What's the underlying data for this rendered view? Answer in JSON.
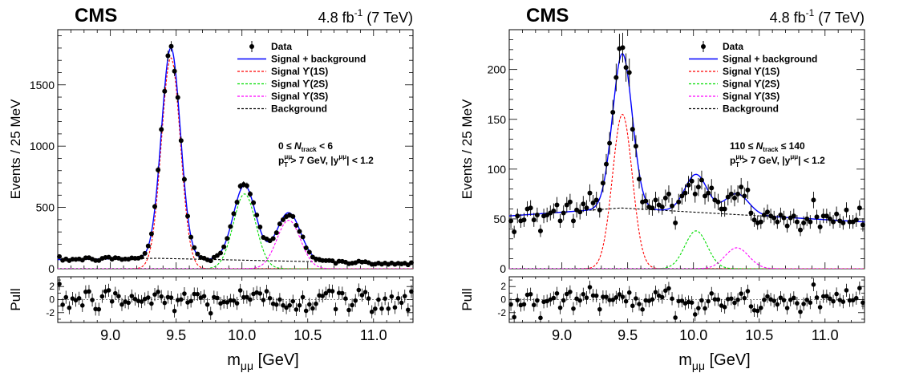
{
  "figures": [
    {
      "cms_label": "CMS",
      "lumi_value": "4.8 fb",
      "lumi_exp": "-1",
      "lumi_energy": "(7 TeV)",
      "cut_text_1_lo": "0 ≤",
      "cut_text_1_var": "N",
      "cut_text_1_sub": "track",
      "cut_text_1_hi": "< 6",
      "cut_text_2": "> 7 GeV, |y",
      "cut_text_2_end": "| < 1.2"
    },
    {
      "cms_label": "CMS",
      "lumi_value": "4.8 fb",
      "lumi_exp": "-1",
      "lumi_energy": "(7 TeV)",
      "cut_text_1_lo": "110 ≤",
      "cut_text_1_var": "N",
      "cut_text_1_sub": "track",
      "cut_text_1_hi": "≤ 140",
      "cut_text_2": "> 7 GeV, |y",
      "cut_text_2_end": "| < 1.2"
    }
  ],
  "legend": [
    {
      "label": "Data",
      "style": "marker",
      "color": "#000000"
    },
    {
      "label": "Signal + background",
      "style": "solid",
      "color": "#0000ff"
    },
    {
      "label": "Signal ϒ(1S)",
      "style": "dashed",
      "color": "#ff0000"
    },
    {
      "label": "Signal ϒ(2S)",
      "style": "dashed",
      "color": "#00dd00"
    },
    {
      "label": "Signal ϒ(3S)",
      "style": "dashed",
      "color": "#ff00ff"
    },
    {
      "label": "Background",
      "style": "dashed",
      "color": "#000000"
    }
  ],
  "axis_labels": {
    "y_main": "Events / 25 MeV",
    "y_pull": "Pull",
    "x_main": "m",
    "x_sub": "μμ",
    "x_unit": "[GeV]",
    "pt_label": "p",
    "pt_sub": "T",
    "pt_sup": "μμ",
    "y_sup": "μμ"
  },
  "chart_data": [
    {
      "type": "scatter",
      "title": "",
      "xlabel": "mμμ [GeV]",
      "ylabel": "Events / 25 MeV",
      "xlim": [
        8.6,
        11.3
      ],
      "ylim": [
        0,
        1950
      ],
      "xticks": [
        9.0,
        9.5,
        10.0,
        10.5,
        11.0
      ],
      "yticks": [
        0,
        500,
        1000,
        1500
      ],
      "pull_ylim": [
        -3.5,
        3.5
      ],
      "pull_yticks": [
        -2,
        0,
        2
      ],
      "bin_width": 0.025,
      "model": {
        "background": {
          "at_x_min": 75,
          "peak": 85,
          "peak_x": 9.35,
          "at_x_max": 40
        },
        "peaks": [
          {
            "name": "Signal ϒ(1S)",
            "mass": 9.46,
            "height": 1720,
            "sigma": 0.072
          },
          {
            "name": "Signal ϒ(2S)",
            "mass": 10.02,
            "height": 610,
            "sigma": 0.085
          },
          {
            "name": "Signal ϒ(3S)",
            "mass": 10.355,
            "height": 395,
            "sigma": 0.09
          }
        ]
      },
      "series": [
        {
          "name": "Data",
          "note": "points follow the signal+background model with statistical fluctuation"
        },
        {
          "name": "Signal + background"
        },
        {
          "name": "Signal ϒ(1S)"
        },
        {
          "name": "Signal ϒ(2S)"
        },
        {
          "name": "Signal ϒ(3S)"
        },
        {
          "name": "Background"
        }
      ]
    },
    {
      "type": "scatter",
      "title": "",
      "xlabel": "mμμ [GeV]",
      "ylabel": "Events / 25 MeV",
      "xlim": [
        8.6,
        11.3
      ],
      "ylim": [
        0,
        240
      ],
      "xticks": [
        9.0,
        9.5,
        10.0,
        10.5,
        11.0
      ],
      "yticks": [
        0,
        50,
        100,
        150,
        200
      ],
      "pull_ylim": [
        -3.5,
        3.5
      ],
      "pull_yticks": [
        -2,
        0,
        2
      ],
      "bin_width": 0.025,
      "model": {
        "background": {
          "at_x_min": 53,
          "peak": 61,
          "peak_x": 9.45,
          "at_x_max": 47
        },
        "peaks": [
          {
            "name": "Signal ϒ(1S)",
            "mass": 9.46,
            "height": 155,
            "sigma": 0.075
          },
          {
            "name": "Signal ϒ(2S)",
            "mass": 10.02,
            "height": 38,
            "sigma": 0.085
          },
          {
            "name": "Signal ϒ(3S)",
            "mass": 10.33,
            "height": 21,
            "sigma": 0.09
          }
        ]
      },
      "series": [
        {
          "name": "Data",
          "note": "points follow the signal+background model with statistical fluctuation"
        },
        {
          "name": "Signal + background"
        },
        {
          "name": "Signal ϒ(1S)"
        },
        {
          "name": "Signal ϒ(2S)"
        },
        {
          "name": "Signal ϒ(3S)"
        },
        {
          "name": "Background"
        }
      ]
    }
  ]
}
